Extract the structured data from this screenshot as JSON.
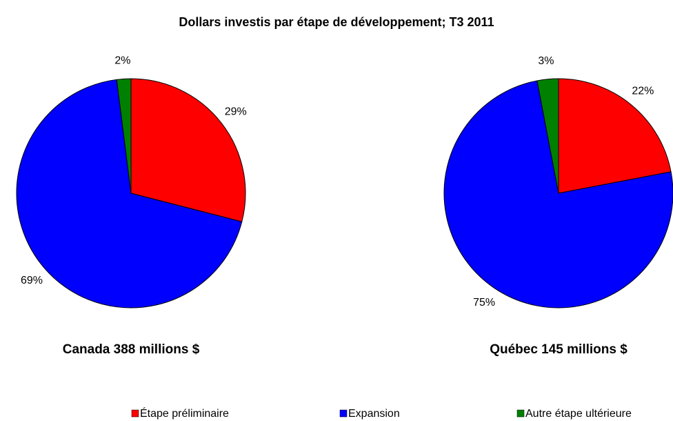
{
  "title": "Dollars investis par étape de développement; T3 2011",
  "legend": {
    "categories": [
      "Étape préliminaire",
      "Expansion",
      "Autre étape ultérieure"
    ],
    "colors": [
      "#ff0000",
      "#0000ff",
      "#008000"
    ]
  },
  "chart_data": [
    {
      "type": "pie",
      "title": "Canada 388 millions $",
      "values": [
        29,
        69,
        2
      ],
      "value_labels": [
        "29%",
        "69%",
        "2%"
      ]
    },
    {
      "type": "pie",
      "title": "Québec 145 millions $",
      "values": [
        22,
        75,
        3
      ],
      "value_labels": [
        "22%",
        "75%",
        "3%"
      ]
    }
  ]
}
